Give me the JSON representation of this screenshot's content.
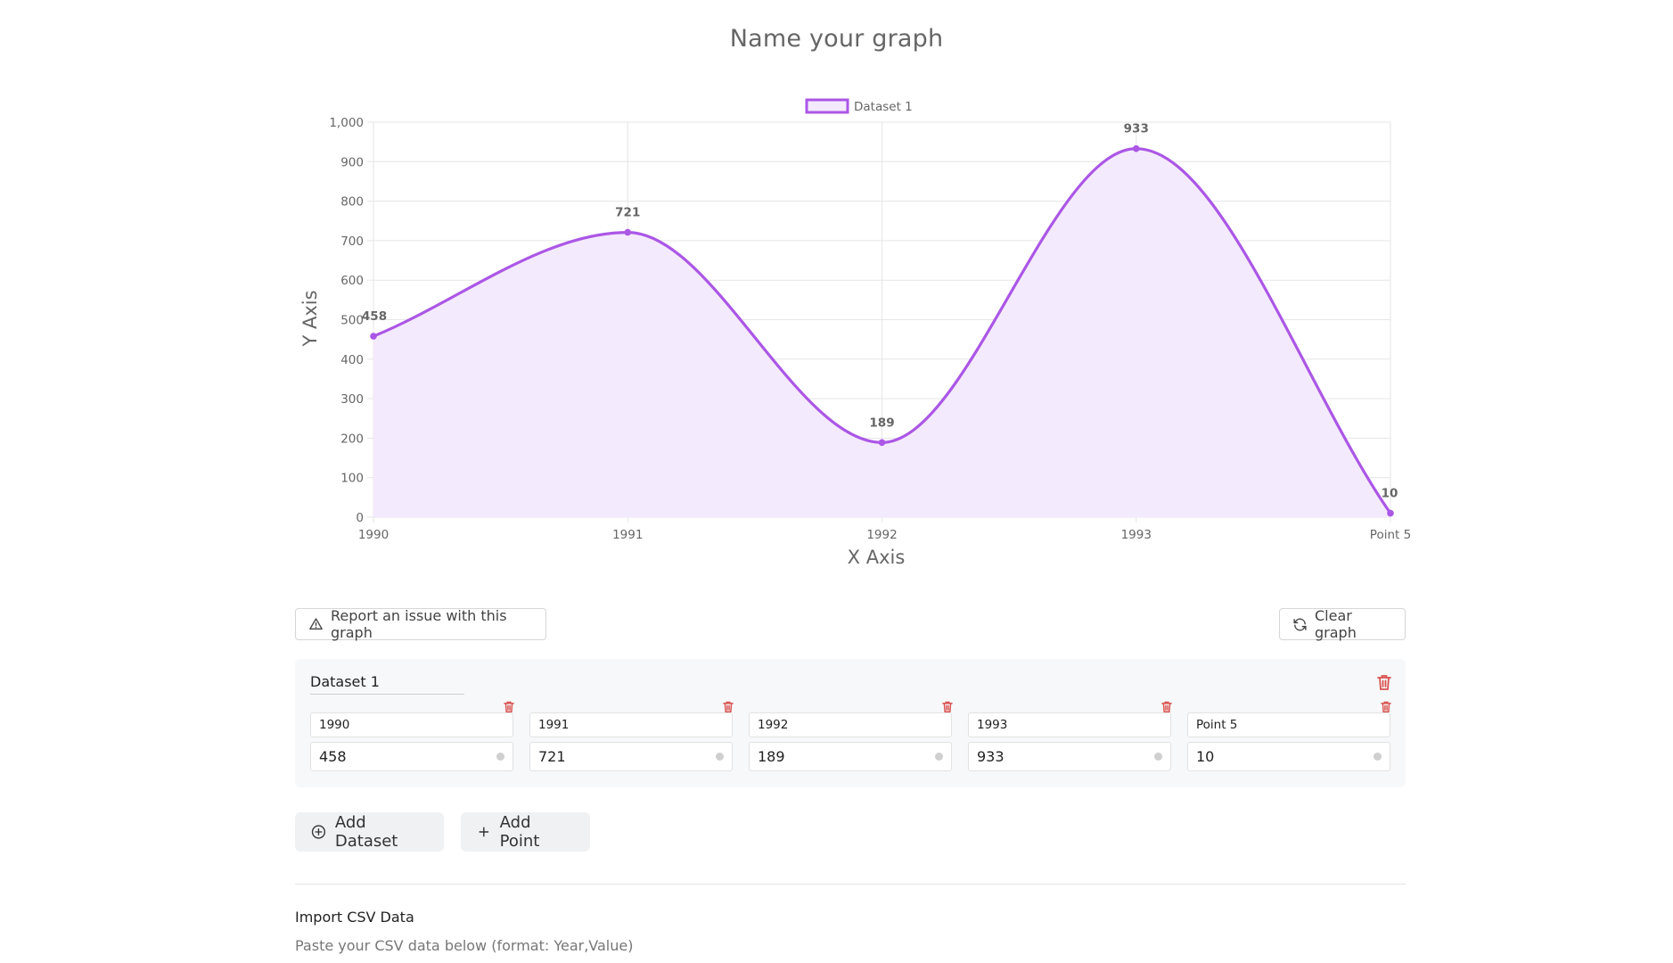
{
  "chart_data": {
    "type": "line",
    "title": "Name your graph",
    "xlabel": "X Axis",
    "ylabel": "Y Axis",
    "categories": [
      "1990",
      "1991",
      "1992",
      "1993",
      "Point 5"
    ],
    "series": [
      {
        "name": "Dataset 1",
        "values": [
          458,
          721,
          189,
          933,
          10
        ],
        "color": "#ab57e6",
        "fill": "#f4eafd"
      }
    ],
    "ylim": [
      0,
      1000
    ],
    "yticks": [
      "0",
      "100",
      "200",
      "300",
      "400",
      "500",
      "600",
      "700",
      "800",
      "900",
      "1,000"
    ],
    "grid": true,
    "legend": "top-center",
    "data_labels": true
  },
  "toolbar": {
    "report_label": "Report an issue with this graph",
    "clear_label": "Clear graph"
  },
  "dataset": {
    "name": "Dataset 1",
    "points": [
      {
        "label": "1990",
        "value": "458"
      },
      {
        "label": "1991",
        "value": "721"
      },
      {
        "label": "1992",
        "value": "189"
      },
      {
        "label": "1993",
        "value": "933"
      },
      {
        "label": "Point 5",
        "value": "10"
      }
    ]
  },
  "actions": {
    "add_dataset_label": "Add Dataset",
    "add_point_label": "Add Point"
  },
  "csv": {
    "title": "Import CSV Data",
    "hint": "Paste your CSV data below (format: Year,Value)"
  },
  "icons": {
    "warning": "warning-icon",
    "refresh": "refresh-icon",
    "trash": "trash-icon",
    "plus-circle": "plus-circle-icon",
    "plus": "plus-icon"
  },
  "colors": {
    "accent": "#ab57e6",
    "danger": "#d9534f"
  }
}
